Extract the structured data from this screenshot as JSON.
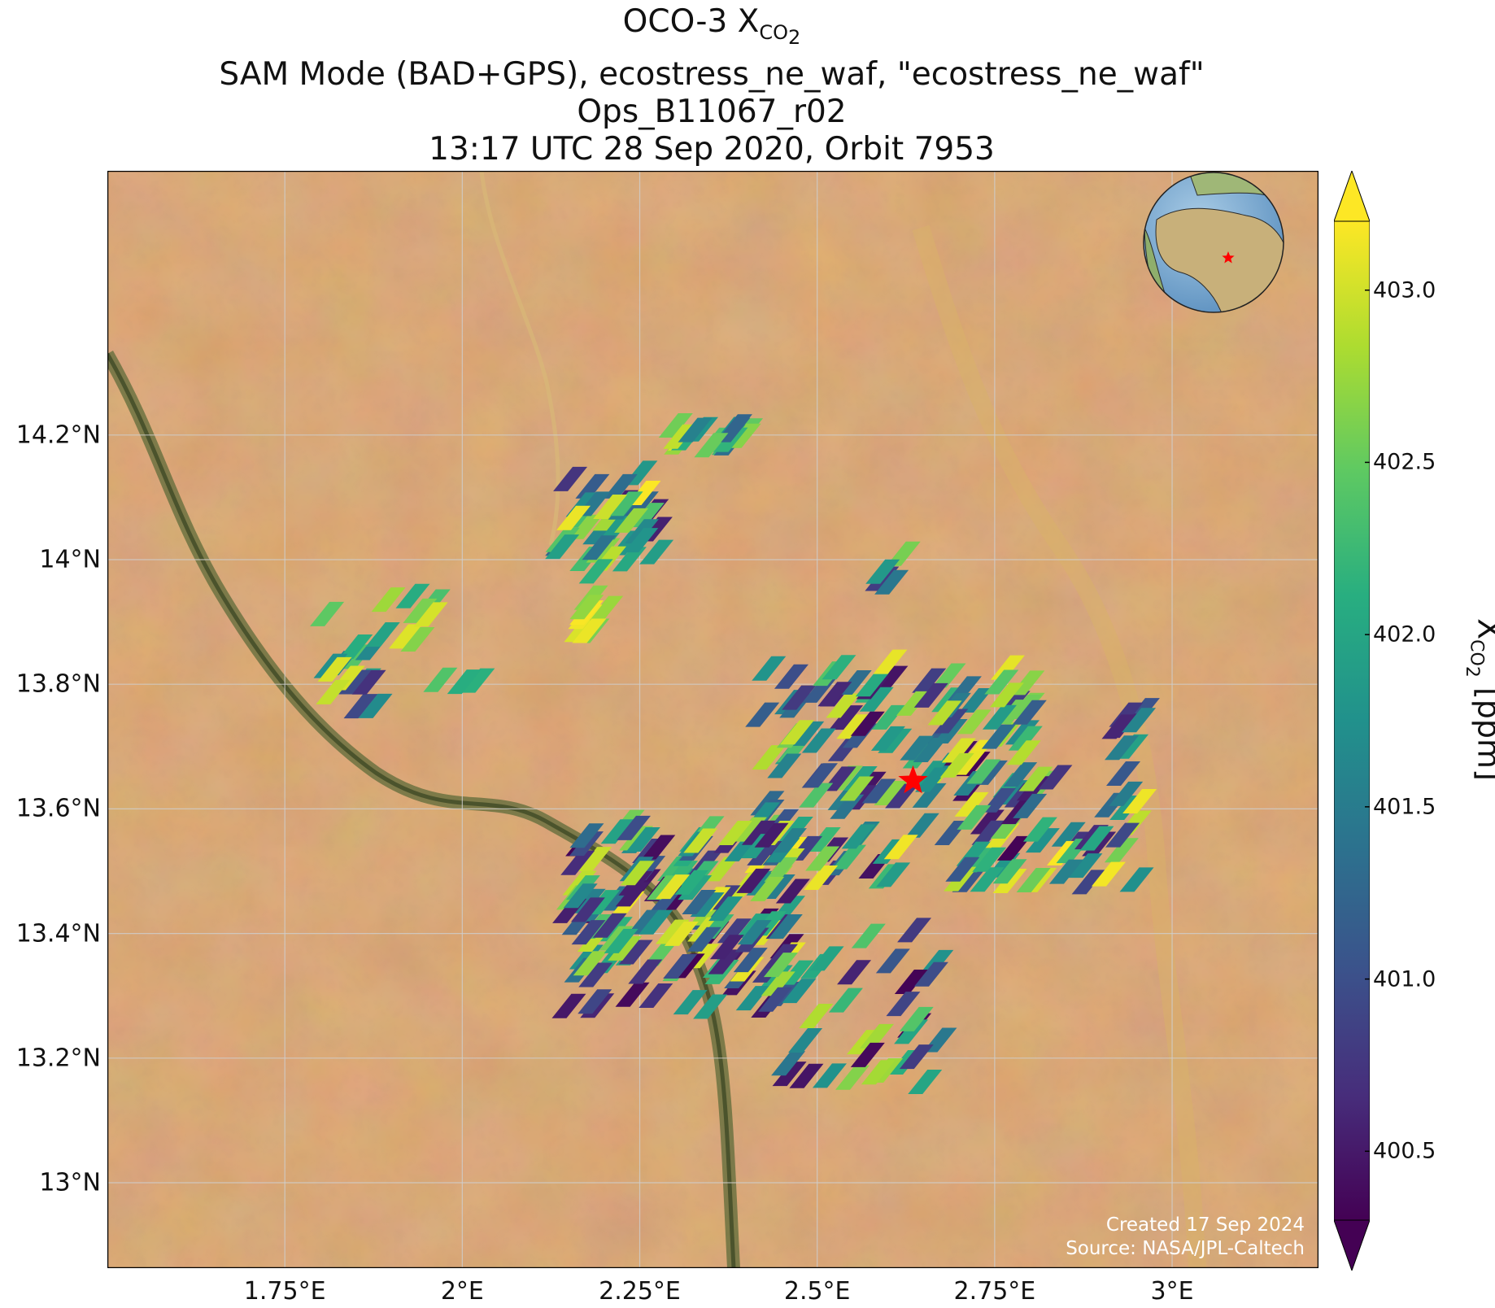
{
  "title": {
    "line1_main": "OCO-3 X",
    "line1_sub": "CO",
    "line1_sub2": "2",
    "line2": "SAM Mode (BAD+GPS), ecostress_ne_waf, \"ecostress_ne_waf\"",
    "line3": "Ops_B11067_r02",
    "line4": "13:17 UTC 28 Sep 2020, Orbit 7953"
  },
  "map": {
    "lon_range": [
      1.5,
      3.2
    ],
    "lat_range": [
      12.9,
      14.4
    ],
    "lat_ticks": [
      {
        "value": 13.0,
        "label": "13°N"
      },
      {
        "value": 13.2,
        "label": "13.2°N"
      },
      {
        "value": 13.4,
        "label": "13.4°N"
      },
      {
        "value": 13.6,
        "label": "13.6°N"
      },
      {
        "value": 13.8,
        "label": "13.8°N"
      },
      {
        "value": 14.0,
        "label": "14°N"
      },
      {
        "value": 14.2,
        "label": "14.2°N"
      }
    ],
    "lon_ticks": [
      {
        "value": 1.75,
        "label": "1.75°E"
      },
      {
        "value": 2.0,
        "label": "2°E"
      },
      {
        "value": 2.25,
        "label": "2.25°E"
      },
      {
        "value": 2.5,
        "label": "2.5°E"
      },
      {
        "value": 2.75,
        "label": "2.75°E"
      },
      {
        "value": 3.0,
        "label": "3°E"
      }
    ],
    "grid": true,
    "background": "satellite-imagery-sahel",
    "target_marker": {
      "lon": 2.635,
      "lat": 13.645,
      "symbol": "star",
      "color": "#ff0000"
    },
    "inset_globe": {
      "placement": "top-right",
      "marker_color": "#ff0000"
    },
    "colors": {
      "land": "#c98a4f",
      "river": "#5e6b3a",
      "grid": "#cfcfcf"
    }
  },
  "credit": {
    "line1": "Created 17 Sep 2024",
    "line2": "Source: NASA/JPL-Caltech"
  },
  "colorbar": {
    "colormap": "viridis",
    "range": [
      400.3,
      403.2
    ],
    "extend": "both",
    "ticks": [
      {
        "value": 400.5,
        "label": "400.5"
      },
      {
        "value": 401.0,
        "label": "401.0"
      },
      {
        "value": 401.5,
        "label": "401.5"
      },
      {
        "value": 402.0,
        "label": "402.0"
      },
      {
        "value": 402.5,
        "label": "402.5"
      },
      {
        "value": 403.0,
        "label": "403.0"
      }
    ],
    "label_main": "X",
    "label_sub": "CO",
    "label_sub2": "2",
    "label_unit": " [ppm]"
  },
  "chart_data": {
    "type": "scatter",
    "xlabel": "",
    "ylabel": "",
    "value_label": "XCO2 [ppm]",
    "clusters": [
      {
        "lon_range": [
          2.28,
          2.4
        ],
        "lat_range": [
          14.18,
          14.22
        ],
        "range": [
          401.0,
          403.2
        ],
        "count": 18
      },
      {
        "lon_range": [
          2.14,
          2.28
        ],
        "lat_range": [
          13.98,
          14.14
        ],
        "range": [
          400.5,
          403.2
        ],
        "count": 35
      },
      {
        "lon_range": [
          2.16,
          2.22
        ],
        "lat_range": [
          13.88,
          13.94
        ],
        "range": [
          402.5,
          403.2
        ],
        "count": 8
      },
      {
        "lon_range": [
          1.78,
          1.88
        ],
        "lat_range": [
          13.76,
          13.92
        ],
        "range": [
          400.6,
          403.2
        ],
        "count": 14
      },
      {
        "lon_range": [
          1.87,
          1.96
        ],
        "lat_range": [
          13.87,
          13.95
        ],
        "range": [
          401.6,
          403.2
        ],
        "count": 8
      },
      {
        "lon_range": [
          1.94,
          2.03
        ],
        "lat_range": [
          13.79,
          13.81
        ],
        "range": [
          402.0,
          402.5
        ],
        "count": 3
      },
      {
        "lon_range": [
          2.58,
          2.63
        ],
        "lat_range": [
          13.96,
          14.02
        ],
        "range": [
          400.6,
          403.2
        ],
        "count": 4
      },
      {
        "lon_range": [
          2.42,
          2.8
        ],
        "lat_range": [
          13.48,
          13.84
        ],
        "range": [
          400.3,
          403.2
        ],
        "count": 150
      },
      {
        "lon_range": [
          2.15,
          2.48
        ],
        "lat_range": [
          13.28,
          13.58
        ],
        "range": [
          400.3,
          403.2
        ],
        "count": 140
      },
      {
        "lon_range": [
          2.44,
          2.68
        ],
        "lat_range": [
          13.16,
          13.42
        ],
        "range": [
          400.3,
          403.0
        ],
        "count": 35
      },
      {
        "lon_range": [
          2.78,
          2.96
        ],
        "lat_range": [
          13.48,
          13.66
        ],
        "range": [
          400.4,
          403.2
        ],
        "count": 30
      },
      {
        "lon_range": [
          2.92,
          3.0
        ],
        "lat_range": [
          13.6,
          13.76
        ],
        "range": [
          400.5,
          402.0
        ],
        "count": 8
      }
    ]
  }
}
